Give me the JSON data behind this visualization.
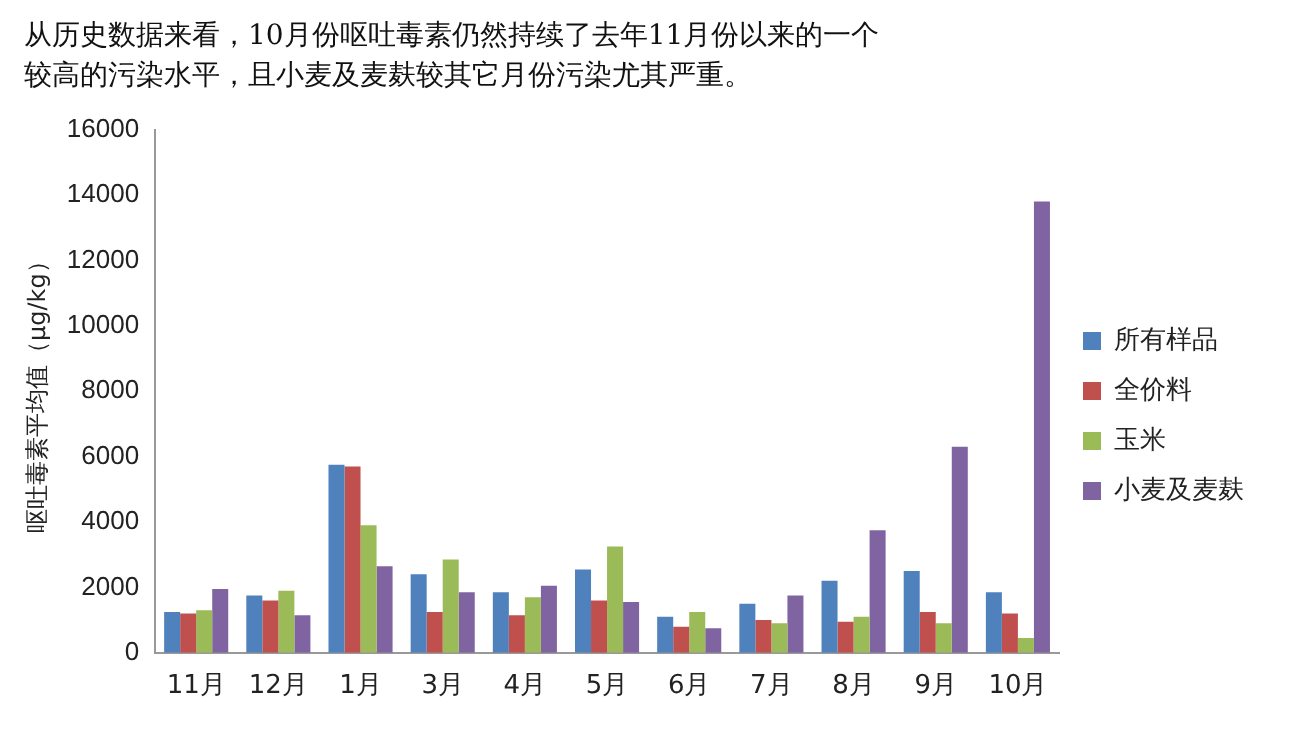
{
  "chart_data": {
    "type": "bar",
    "title": "从历史数据来看，10月份呕吐毒素仍然持续了去年11月份以来的一个较高的污染水平，且小麦及麦麸较其它月份污染尤其严重。",
    "ylabel": "呕吐毒素平均值（μg/kg）",
    "categories": [
      "11月",
      "12月",
      "1月",
      "3月",
      "4月",
      "5月",
      "6月",
      "7月",
      "8月",
      "9月",
      "10月"
    ],
    "series": [
      {
        "name": "所有样品",
        "color": "#4f81bd",
        "values": [
          1250,
          1750,
          5750,
          2400,
          1850,
          2550,
          1100,
          1500,
          2200,
          2500,
          1850
        ]
      },
      {
        "name": "全价料",
        "color": "#c0504d",
        "values": [
          1200,
          1600,
          5700,
          1250,
          1150,
          1600,
          800,
          1000,
          950,
          1250,
          1200
        ]
      },
      {
        "name": "玉米",
        "color": "#9bbb59",
        "values": [
          1300,
          1900,
          3900,
          2850,
          1700,
          3250,
          1250,
          900,
          1100,
          900,
          450
        ]
      },
      {
        "name": "小麦及麦麸",
        "color": "#8064a2",
        "values": [
          1950,
          1150,
          2650,
          1850,
          2050,
          1550,
          750,
          1750,
          3750,
          6300,
          13800
        ]
      }
    ],
    "ylim": [
      0,
      16000
    ],
    "yticks": [
      0,
      2000,
      4000,
      6000,
      8000,
      10000,
      12000,
      14000,
      16000
    ],
    "grid": false,
    "legend": "right"
  }
}
